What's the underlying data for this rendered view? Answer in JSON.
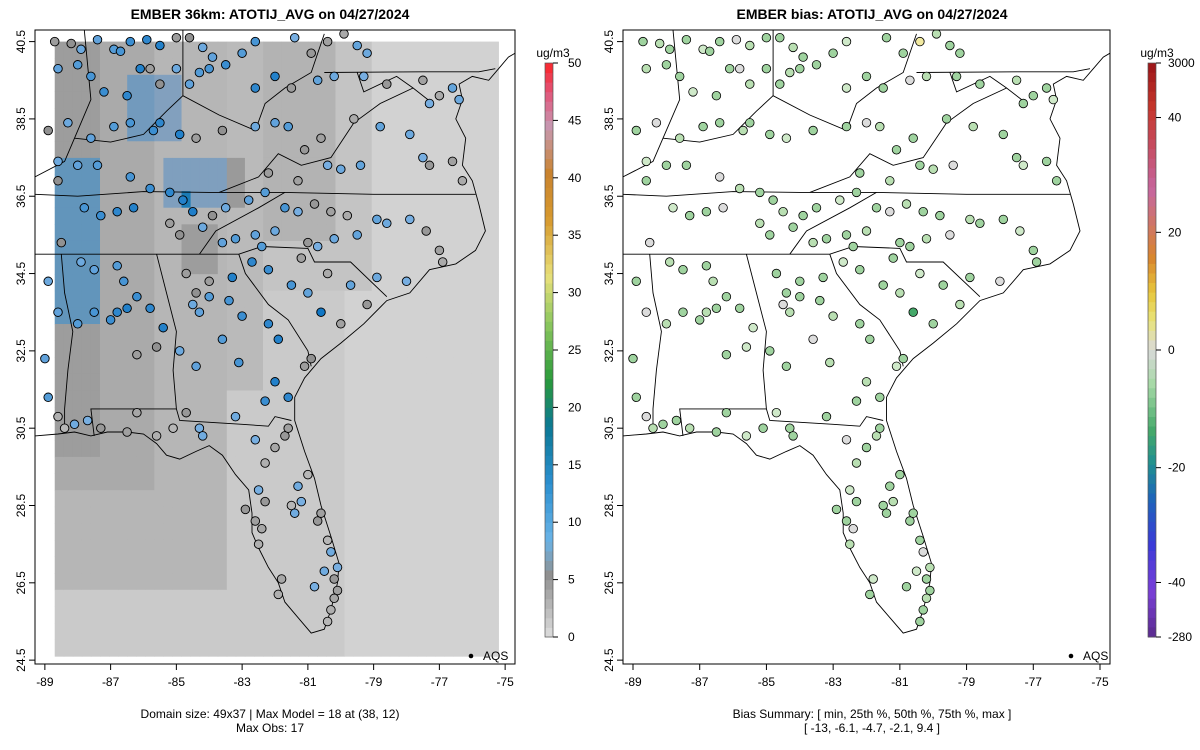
{
  "chart_data": [
    {
      "type": "map",
      "title": "EMBER 36km: ATOTIJ_AVG on 04/27/2024",
      "x_ticks": [
        -89,
        -87,
        -85,
        -83,
        -81,
        -79,
        -77,
        -75
      ],
      "y_ticks": [
        24.5,
        26.5,
        28.5,
        30.5,
        32.5,
        34.5,
        36.5,
        38.5,
        40.5
      ],
      "xlim": [
        -89.3,
        -74.7
      ],
      "ylim": [
        24.4,
        40.8
      ],
      "colorbar": {
        "units": "ug/m3",
        "ticks": [
          0,
          5,
          10,
          15,
          20,
          25,
          30,
          35,
          40,
          45,
          50
        ],
        "range": [
          0,
          50
        ]
      },
      "footer": [
        "Domain size: 49x37 | Max Model = 18 at (38, 12)",
        "Max Obs: 17"
      ],
      "legend": "AQS",
      "domain_size": "49x37",
      "max_model": 18,
      "max_model_cell": [
        38,
        12
      ],
      "max_obs": 17
    },
    {
      "type": "map",
      "title": "EMBER bias: ATOTIJ_AVG on 04/27/2024",
      "x_ticks": [
        -89,
        -87,
        -85,
        -83,
        -81,
        -79,
        -77,
        -75
      ],
      "y_ticks": [
        24.5,
        26.5,
        28.5,
        30.5,
        32.5,
        34.5,
        36.5,
        38.5,
        40.5
      ],
      "xlim": [
        -89.3,
        -74.7
      ],
      "ylim": [
        24.4,
        40.8
      ],
      "colorbar": {
        "units": "ug/m3",
        "ticks": [
          3000,
          40,
          20,
          0,
          -20,
          -40,
          -280
        ]
      },
      "footer": [
        "Bias Summary: [ min, 25th %, 50th %, 75th %, max ]",
        "[ -13,   -6.1,   -4.7,   -2.1,   9.4 ]"
      ],
      "legend": "AQS",
      "bias_summary": {
        "min": -13,
        "p25": -6.1,
        "p50": -4.7,
        "p75": -2.1,
        "max": 9.4
      }
    }
  ]
}
